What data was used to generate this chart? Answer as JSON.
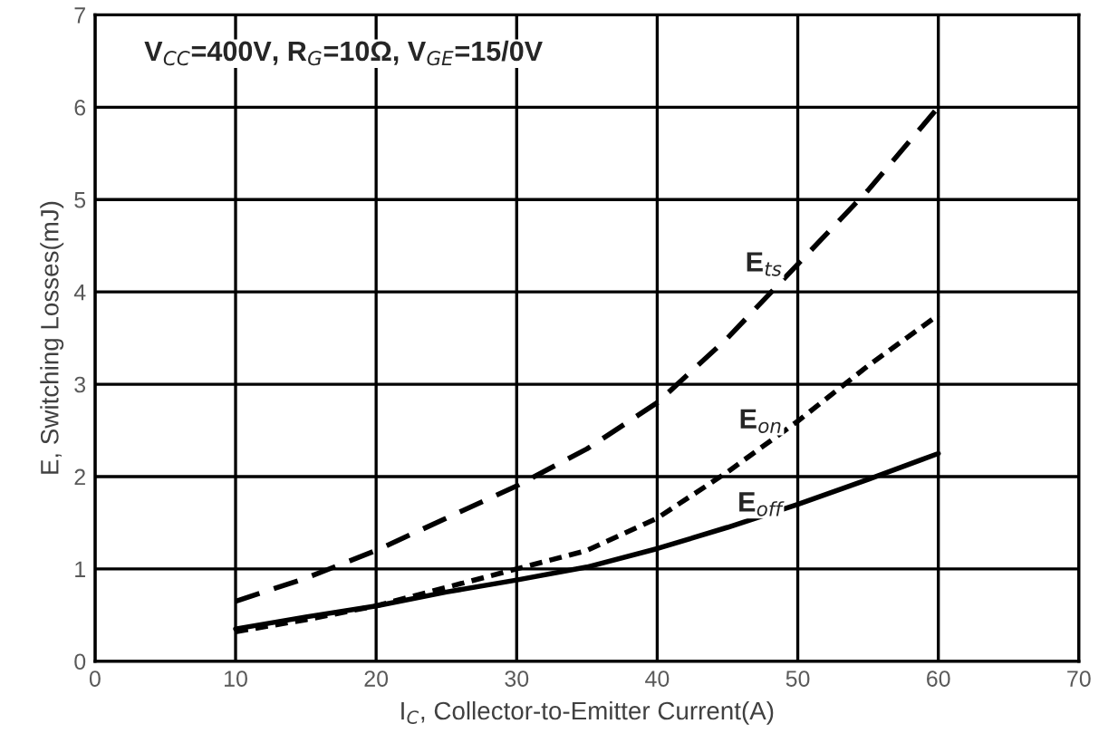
{
  "chart_data": {
    "type": "line",
    "x": [
      10,
      15,
      20,
      25,
      30,
      35,
      40,
      45,
      50,
      55,
      60
    ],
    "series": [
      {
        "name": "E$_{ts}$",
        "color": "#000000",
        "line_style": "dashed",
        "values": [
          0.65,
          0.9,
          1.2,
          1.55,
          1.9,
          2.3,
          2.8,
          3.5,
          4.3,
          5.1,
          6.0
        ]
      },
      {
        "name": "E$_{on}$",
        "color": "#000000",
        "line_style": "dotted",
        "values": [
          0.32,
          0.45,
          0.6,
          0.8,
          1.0,
          1.2,
          1.55,
          2.05,
          2.6,
          3.2,
          3.75
        ]
      },
      {
        "name": "E$_{off}$",
        "color": "#000000",
        "line_style": "solid",
        "values": [
          0.35,
          0.48,
          0.6,
          0.75,
          0.88,
          1.02,
          1.22,
          1.45,
          1.7,
          1.97,
          2.25
        ]
      }
    ],
    "xlabel": "I$_{C}$, Collector-to-Emitter Current(A)",
    "ylabel": "E, Switching Losses(mJ)",
    "annotations": [
      "V$_{CC}$=400V, R$_{G}$=10Ω, V$_{GE}$=15/0V"
    ],
    "xlim": [
      0,
      70
    ],
    "xticks": [
      0,
      10,
      20,
      30,
      40,
      50,
      60,
      70
    ],
    "ylim": [
      0,
      7
    ],
    "yticks": [
      0,
      1,
      2,
      3,
      4,
      5,
      6,
      7
    ],
    "grid": true,
    "marker": "none",
    "legend": false
  }
}
